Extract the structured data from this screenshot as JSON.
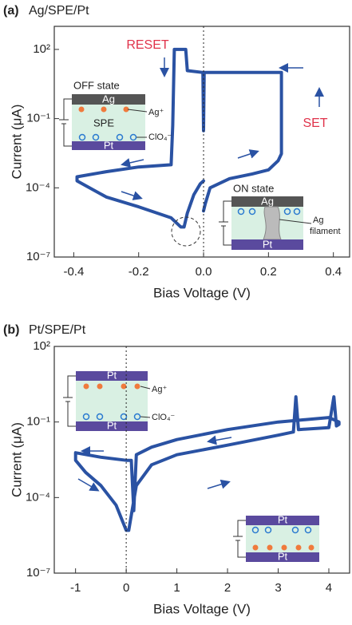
{
  "chart_data": [
    {
      "type": "line",
      "panel_label": "(a)",
      "title": "Ag/SPE/Pt",
      "xlabel": "Bias Voltage (V)",
      "ylabel": "Current (μA)",
      "log_y": true,
      "zero_line": true,
      "color": "#2a52a3",
      "xlim": [
        -0.46,
        0.45
      ],
      "xticks": [
        {
          "value": -0.4,
          "label": "-0.4"
        },
        {
          "value": -0.2,
          "label": "-0.2"
        },
        {
          "value": 0,
          "label": "0.0"
        },
        {
          "value": 0.2,
          "label": "0.2"
        },
        {
          "value": 0.4,
          "label": "0.4"
        }
      ],
      "ylim": [
        1e-07,
        1000
      ],
      "yticks": [
        {
          "value": 1e-07,
          "label": "10⁻⁷"
        },
        {
          "value": 0.0001,
          "label": "10⁻⁴"
        },
        {
          "value": 0.1,
          "label": "10⁻¹"
        },
        {
          "value": 100,
          "label": "10²"
        }
      ],
      "x": [
        0,
        0.005,
        0.02,
        0.08,
        0.15,
        0.2,
        0.23,
        0.24,
        0.24,
        0.1,
        0.002,
        0,
        -0.002,
        -0.05,
        -0.055,
        -0.09,
        -0.095,
        -0.1,
        -0.2,
        -0.3,
        -0.39,
        -0.39,
        -0.3,
        -0.2,
        -0.1,
        -0.07,
        -0.06,
        -0.05,
        -0.03,
        -0.01,
        0
      ],
      "values": [
        1e-05,
        2e-05,
        0.0001,
        0.00025,
        0.0004,
        0.0006,
        0.0015,
        0.003,
        10,
        10,
        10,
        0.03,
        10,
        12,
        100,
        100,
        0.05,
        0.001,
        0.0008,
        0.0005,
        0.0003,
        0.0002,
        4e-05,
        1.5e-05,
        5e-06,
        2e-06,
        2e-06,
        8e-06,
        5e-05,
        0.00015,
        0.0002
      ],
      "annotations": [
        "RESET",
        "SET"
      ],
      "insets": [
        {
          "title": "OFF state",
          "labels": [
            "Ag",
            "Ag⁺",
            "SPE",
            "ClO₄⁻",
            "Pt"
          ]
        },
        {
          "title": "ON state",
          "labels": [
            "Ag",
            "Ag",
            "filament",
            "Pt"
          ]
        }
      ]
    },
    {
      "type": "line",
      "panel_label": "(b)",
      "title": "Pt/SPE/Pt",
      "xlabel": "Bias Voltage (V)",
      "ylabel": "Current (μA)",
      "log_y": true,
      "zero_line": true,
      "color": "#2a52a3",
      "xlim": [
        -1.42,
        4.41
      ],
      "xticks": [
        -1,
        0,
        1,
        2,
        3,
        4
      ],
      "ylim": [
        1e-07,
        100
      ],
      "yticks": [
        {
          "value": 1e-07,
          "label": "10⁻⁷"
        },
        {
          "value": 0.0001,
          "label": "10⁻⁴"
        },
        {
          "value": 0.1,
          "label": "10⁻¹"
        },
        {
          "value": 100,
          "label": "10²"
        }
      ],
      "x": [
        0.05,
        0.2,
        0.5,
        1,
        2,
        3,
        3.3,
        3.35,
        3.4,
        4,
        4.1,
        4.15,
        4.2,
        4.2,
        4,
        3,
        2,
        1,
        0.5,
        0.2,
        0.15,
        0.1,
        0,
        -0.5,
        -1,
        -1,
        -0.8,
        -0.5,
        -0.2,
        0,
        0.05
      ],
      "values": [
        5e-06,
        0.0003,
        0.002,
        0.005,
        0.012,
        0.03,
        0.04,
        1,
        0.05,
        0.06,
        1,
        0.07,
        0.08,
        0.1,
        0.15,
        0.1,
        0.05,
        0.02,
        0.01,
        0.005,
        3e-05,
        0.003,
        0.003,
        0.004,
        0.006,
        0.003,
        0.001,
        0.0003,
        5e-05,
        5e-06,
        5e-06
      ],
      "insets": [
        {
          "labels": [
            "Pt",
            "Ag⁺",
            "ClO₄⁻",
            "Pt"
          ]
        },
        {
          "labels": [
            "Pt",
            "Pt"
          ]
        }
      ]
    }
  ]
}
